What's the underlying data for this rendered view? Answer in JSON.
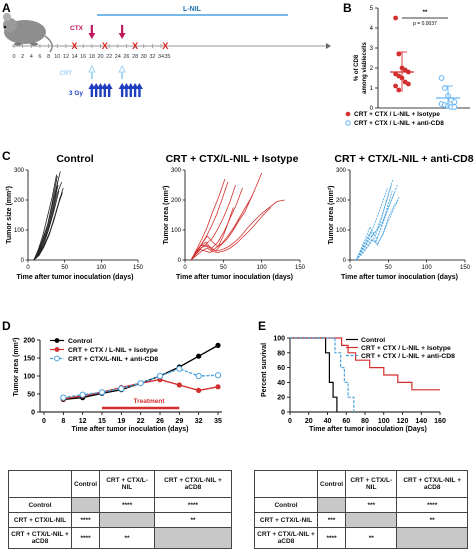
{
  "panel_labels": {
    "a": "A",
    "b": "B",
    "c": "C",
    "d": "D",
    "e": "E"
  },
  "timeline": {
    "lnil_label": "L-NIL",
    "ctx_label": "CTX",
    "crt_label": "CRT",
    "gy_label": "3 Gy",
    "day_ticks": [
      "0",
      "2",
      "4",
      "6",
      "8",
      "10",
      "12",
      "14",
      "16",
      "18",
      "20",
      "22",
      "24",
      "26",
      "28",
      "30",
      "32",
      "34"
    ],
    "day_values": [
      0,
      2,
      4,
      6,
      8,
      10,
      12,
      14,
      16,
      18,
      20,
      22,
      24,
      26,
      28,
      30,
      32,
      34
    ],
    "extra_tick_labels": [
      "14",
      "35"
    ],
    "red_x_days": [
      14,
      21,
      28,
      35
    ],
    "ctx_days": [
      18,
      25
    ],
    "crt_days": [
      18,
      25
    ],
    "rt_days": [
      18,
      19,
      20,
      21,
      22,
      25,
      26,
      27,
      28,
      29
    ],
    "colors": {
      "lnil": "#4aa3df",
      "ctx": "#c2185b",
      "crt": "#9fd3f5",
      "rt": "#1f3fbf",
      "x": "#e02020"
    }
  },
  "panel_b": {
    "ylabel": "% of CD8+ T cells among viablecells",
    "ylabel_line1": "% of CD8",
    "ylabel_line2": "among viablecells",
    "yticks": [
      "0",
      "1",
      "2",
      "3",
      "4",
      "5"
    ],
    "sig_stars": "**",
    "p_value": "p = 0.0037",
    "legend": [
      "CRT + CTX / L-NIL + Isotype",
      "CRT + CTX / L-NIL + anti-CD8"
    ],
    "chart_data": {
      "type": "scatter",
      "ylim": [
        0,
        5
      ],
      "series": [
        {
          "name": "CRT + CTX / L-NIL + Isotype",
          "color": "#d32f2f",
          "mean": 1.8,
          "sd": 1.0,
          "values": [
            4.5,
            2.7,
            2.0,
            1.9,
            1.8,
            1.7,
            1.6,
            1.5,
            1.3,
            1.2,
            1.1,
            0.9
          ]
        },
        {
          "name": "CRT + CTX / L-NIL + anti-CD8",
          "color": "#64b5f6",
          "mean": 0.5,
          "sd": 0.6,
          "values": [
            1.5,
            1.0,
            0.6,
            0.4,
            0.3,
            0.2,
            0.15,
            0.1,
            0.05,
            0.05
          ]
        }
      ]
    }
  },
  "panel_c": {
    "titles": [
      "Control",
      "CRT + CTX/L-NIL + Isotype",
      "CRT + CTX/L-NIL + anti-CD8"
    ],
    "ylabels": [
      "Tumor size (mm²)",
      "Tumor area (mm²)",
      "Tumor area (mm²)"
    ],
    "xlabel": "Time after tumor inoculation (days)",
    "xticks": [
      "0",
      "50",
      "100",
      "150"
    ],
    "yticks": [
      "0",
      "100",
      "200",
      "300"
    ],
    "chart_data": [
      {
        "type": "line",
        "title": "Control",
        "xlim": [
          0,
          150
        ],
        "ylim": [
          0,
          300
        ],
        "color": "#222222",
        "series": [
          {
            "x": [
              8,
              14,
              20,
              27,
              33,
              39,
              46
            ],
            "y": [
              0,
              25,
              55,
              95,
              150,
              215,
              260
            ]
          },
          {
            "x": [
              8,
              14,
              20,
              27,
              33,
              40
            ],
            "y": [
              0,
              30,
              70,
              120,
              190,
              280
            ]
          },
          {
            "x": [
              8,
              14,
              21,
              28,
              35,
              42
            ],
            "y": [
              0,
              20,
              50,
              100,
              160,
              230
            ]
          },
          {
            "x": [
              8,
              15,
              22,
              29,
              36,
              43,
              48
            ],
            "y": [
              0,
              18,
              45,
              85,
              140,
              200,
              240
            ]
          },
          {
            "x": [
              8,
              14,
              20,
              26,
              32,
              38,
              44
            ],
            "y": [
              0,
              28,
              62,
              110,
              170,
              235,
              295
            ]
          },
          {
            "x": [
              8,
              14,
              21,
              27,
              34,
              41
            ],
            "y": [
              0,
              22,
              58,
              105,
              175,
              250
            ]
          },
          {
            "x": [
              8,
              15,
              21,
              28,
              35,
              42,
              47
            ],
            "y": [
              0,
              15,
              40,
              80,
              130,
              190,
              225
            ]
          },
          {
            "x": [
              8,
              14,
              20,
              26,
              33,
              39
            ],
            "y": [
              0,
              35,
              80,
              140,
              210,
              285
            ]
          },
          {
            "x": [
              8,
              14,
              21,
              28,
              35,
              41
            ],
            "y": [
              0,
              25,
              60,
              115,
              185,
              265
            ]
          },
          {
            "x": [
              8,
              15,
              22,
              30,
              37,
              44
            ],
            "y": [
              0,
              20,
              50,
              95,
              150,
              210
            ]
          }
        ]
      },
      {
        "type": "line",
        "title": "CRT + CTX/L-NIL + Isotype",
        "xlim": [
          0,
          150
        ],
        "ylim": [
          0,
          300
        ],
        "color": "#d32f2f",
        "series": [
          {
            "x": [
              8,
              14,
              20,
              27,
              34,
              40,
              47,
              55,
              62,
              70,
              78,
              85,
              92,
              100
            ],
            "y": [
              0,
              25,
              45,
              60,
              40,
              30,
              50,
              70,
              95,
              130,
              160,
              200,
              240,
              290
            ]
          },
          {
            "x": [
              8,
              14,
              21,
              28,
              35,
              42,
              50,
              58,
              66
            ],
            "y": [
              0,
              20,
              40,
              55,
              70,
              100,
              140,
              190,
              250
            ]
          },
          {
            "x": [
              8,
              15,
              22,
              29,
              36,
              43,
              50,
              57,
              63
            ],
            "y": [
              0,
              30,
              55,
              80,
              60,
              45,
              80,
              130,
              175
            ]
          },
          {
            "x": [
              8,
              14,
              20,
              26,
              33,
              40,
              48,
              56,
              64,
              72,
              80,
              88
            ],
            "y": [
              0,
              18,
              35,
              30,
              25,
              40,
              55,
              80,
              110,
              145,
              180,
              215
            ]
          },
          {
            "x": [
              8,
              14,
              21,
              28,
              35,
              42,
              49,
              57,
              65,
              73,
              81,
              90,
              100,
              110,
              120,
              130
            ],
            "y": [
              0,
              22,
              40,
              50,
              35,
              30,
              35,
              45,
              60,
              80,
              105,
              130,
              155,
              175,
              195,
              200
            ]
          },
          {
            "x": [
              8,
              15,
              22,
              29,
              36,
              44,
              52
            ],
            "y": [
              0,
              35,
              70,
              110,
              160,
              210,
              270
            ]
          },
          {
            "x": [
              8,
              14,
              21,
              28,
              35,
              43,
              51,
              59,
              67,
              75
            ],
            "y": [
              0,
              25,
              50,
              45,
              40,
              60,
              95,
              140,
              185,
              240
            ]
          },
          {
            "x": [
              8,
              14,
              20,
              27,
              34,
              41,
              48,
              56
            ],
            "y": [
              0,
              20,
              45,
              75,
              110,
              150,
              200,
              260
            ]
          },
          {
            "x": [
              8,
              15,
              22,
              29,
              36,
              43,
              51,
              59,
              67,
              75,
              83,
              92,
              102,
              112
            ],
            "y": [
              0,
              15,
              30,
              40,
              28,
              25,
              30,
              40,
              55,
              75,
              95,
              120,
              150,
              175
            ]
          }
        ]
      },
      {
        "type": "line",
        "title": "CRT + CTX/L-NIL + anti-CD8",
        "xlim": [
          0,
          150
        ],
        "ylim": [
          0,
          300
        ],
        "color": "#4aa3df",
        "dashed": true,
        "series": [
          {
            "x": [
              8,
              14,
              20,
              27,
              34,
              41,
              48,
              55
            ],
            "y": [
              0,
              30,
              60,
              90,
              60,
              110,
              170,
              230
            ]
          },
          {
            "x": [
              8,
              14,
              21,
              28,
              35,
              42,
              49,
              56
            ],
            "y": [
              0,
              25,
              50,
              80,
              100,
              150,
              210,
              270
            ]
          },
          {
            "x": [
              8,
              15,
              22,
              29,
              36,
              43,
              50,
              57,
              63
            ],
            "y": [
              0,
              20,
              45,
              70,
              50,
              90,
              140,
              180,
              200
            ]
          },
          {
            "x": [
              8,
              14,
              20,
              26,
              33,
              40,
              47,
              54
            ],
            "y": [
              0,
              35,
              70,
              110,
              80,
              130,
              190,
              250
            ]
          },
          {
            "x": [
              8,
              14,
              21,
              28,
              35,
              42,
              49
            ],
            "y": [
              0,
              28,
              55,
              95,
              140,
              190,
              240
            ]
          },
          {
            "x": [
              8,
              15,
              22,
              29,
              36,
              43,
              50,
              57,
              64
            ],
            "y": [
              0,
              18,
              40,
              65,
              55,
              85,
              130,
              170,
              210
            ]
          },
          {
            "x": [
              8,
              14,
              20,
              27,
              34,
              41,
              48,
              55,
              62
            ],
            "y": [
              0,
              22,
              48,
              75,
              95,
              120,
              160,
              205,
              250
            ]
          },
          {
            "x": [
              8,
              14,
              21,
              28,
              35,
              42,
              50,
              58
            ],
            "y": [
              0,
              32,
              65,
              100,
              70,
              115,
              175,
              225
            ]
          }
        ]
      }
    ]
  },
  "panel_d": {
    "ylabel": "Tumor area (mm²)",
    "xlabel": "Time after tumor inoculation (days)",
    "treatment_label": "Treatment",
    "xtick_labels": [
      "0",
      "8",
      "12",
      "15",
      "19",
      "22",
      "26",
      "29",
      "32",
      "35"
    ],
    "yticks": [
      "0",
      "50",
      "100",
      "150",
      "200"
    ],
    "chart_data": {
      "type": "line",
      "categories": [
        "0",
        "8",
        "12",
        "15",
        "19",
        "22",
        "26",
        "29",
        "32",
        "35"
      ],
      "ylim": [
        0,
        200
      ],
      "series": [
        {
          "name": "Control",
          "color": "#000000",
          "values": [
            null,
            35,
            40,
            52,
            62,
            80,
            100,
            125,
            155,
            185
          ]
        },
        {
          "name": "CRT + CTX / L-NIL + Isotype",
          "color": "#d32f2f",
          "values": [
            null,
            37,
            45,
            55,
            68,
            80,
            90,
            75,
            60,
            70
          ]
        },
        {
          "name": "CRT + CTX/L-NIL + anti-CD8",
          "color": "#4aa3df",
          "values": [
            null,
            40,
            48,
            55,
            65,
            80,
            100,
            120,
            100,
            102
          ]
        }
      ]
    }
  },
  "panel_e": {
    "ylabel": "Percent survival",
    "xlabel": "Time after tumor inoculation (Days)",
    "xticks": [
      "0",
      "20",
      "40",
      "60",
      "80",
      "100",
      "120",
      "140",
      "160"
    ],
    "yticks": [
      "0",
      "20",
      "40",
      "60",
      "80",
      "100"
    ],
    "legend": [
      "Control",
      "CRT + CTX / L-NIL + Isotype",
      "CRT + CTX / L-NIL + anti-CD8"
    ],
    "chart_data": {
      "type": "line",
      "xlim": [
        0,
        160
      ],
      "ylim": [
        0,
        100
      ],
      "series": [
        {
          "name": "Control",
          "color": "#000000",
          "x": [
            0,
            38,
            38,
            42,
            42,
            46,
            46,
            50,
            50
          ],
          "y": [
            100,
            100,
            80,
            80,
            40,
            40,
            20,
            20,
            0
          ]
        },
        {
          "name": "CRT + CTX / L-NIL + Isotype",
          "color": "#d32f2f",
          "x": [
            0,
            55,
            55,
            62,
            62,
            70,
            70,
            85,
            85,
            100,
            100,
            115,
            115,
            130,
            130,
            160
          ],
          "y": [
            100,
            100,
            90,
            90,
            80,
            80,
            70,
            70,
            60,
            60,
            50,
            50,
            40,
            40,
            30,
            30
          ]
        },
        {
          "name": "CRT + CTX / L-NIL + anti-CD8",
          "color": "#4aa3df",
          "dashed": true,
          "x": [
            0,
            48,
            48,
            54,
            54,
            58,
            58,
            62,
            62,
            68,
            68
          ],
          "y": [
            100,
            100,
            80,
            80,
            60,
            60,
            40,
            40,
            20,
            20,
            0
          ]
        }
      ]
    }
  },
  "table_d": {
    "header": [
      "",
      "Control",
      "CRT + CTX/L-NIL",
      "CRT + CTX/L-NIL + aCD8"
    ],
    "rows": [
      [
        "Control",
        "",
        "****",
        "****"
      ],
      [
        "CRT + CTX/L-NIL",
        "****",
        "",
        "**"
      ],
      [
        "CRT + CTX/L-NIL + aCD8",
        "****",
        "**",
        ""
      ]
    ]
  },
  "table_e": {
    "header": [
      "",
      "Control",
      "CRT + CTX/L-NIL",
      "CRT + CTX/L-NIL + aCD8"
    ],
    "rows": [
      [
        "Control",
        "",
        "***",
        "****"
      ],
      [
        "CRT + CTX/L-NIL",
        "***",
        "",
        "**"
      ],
      [
        "CRT + CTX/L-NIL + aCD8",
        "****",
        "**",
        ""
      ]
    ]
  }
}
